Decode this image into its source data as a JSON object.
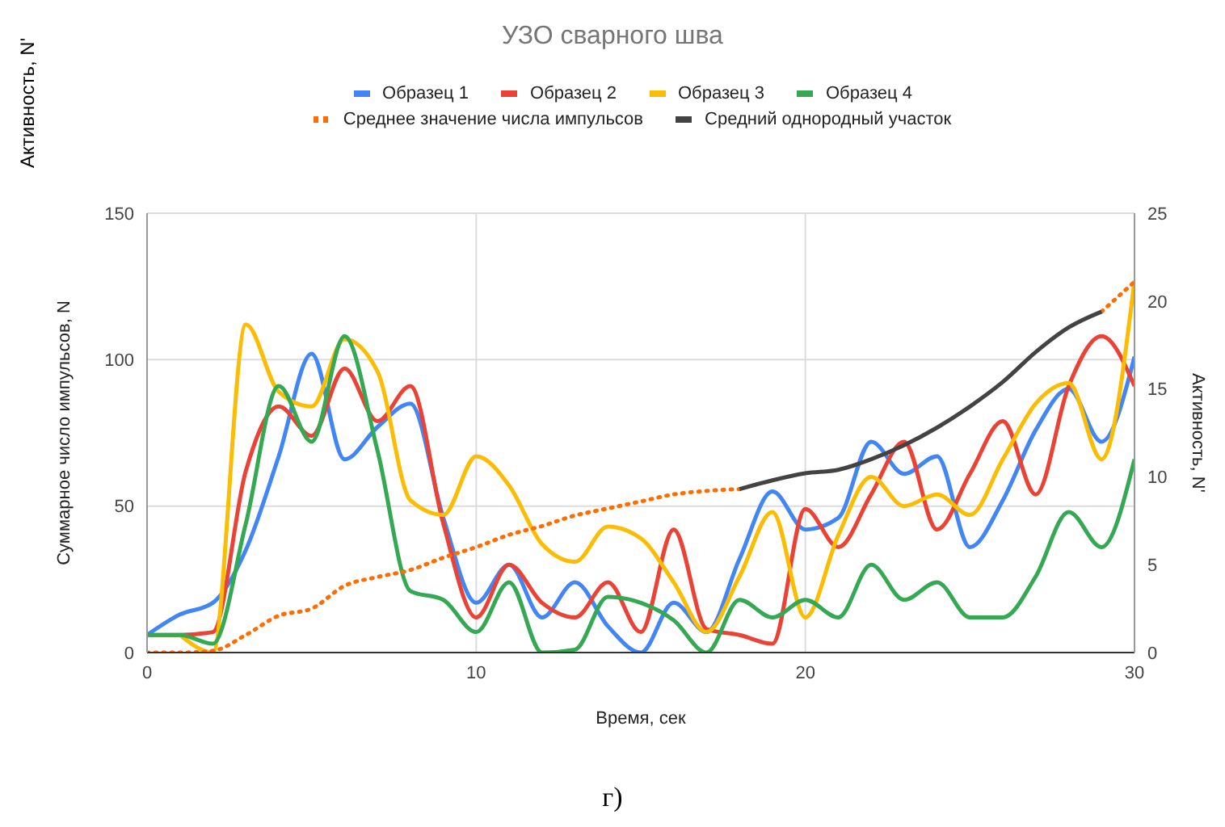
{
  "chart_data": {
    "type": "line",
    "title": "УЗО сварного шва",
    "xlabel": "Время, сек",
    "ylabel": "Суммарное число импульсов, N",
    "y2label": "Активность, N'",
    "annotations": [
      "Активность, N'",
      "г)"
    ],
    "x": [
      0,
      1,
      2,
      3,
      4,
      5,
      6,
      7,
      8,
      9,
      10,
      11,
      12,
      13,
      14,
      15,
      16,
      17,
      18,
      19,
      20,
      21,
      22,
      23,
      24,
      25,
      26,
      27,
      28,
      29,
      30
    ],
    "xlim": [
      0,
      30
    ],
    "xticks": [
      0,
      10,
      20,
      30
    ],
    "ylim": [
      0,
      150
    ],
    "yticks": [
      0,
      50,
      100,
      150
    ],
    "y2lim": [
      0,
      25
    ],
    "y2ticks": [
      0,
      5,
      10,
      15,
      20,
      25
    ],
    "grid": true,
    "legend": "top",
    "marker": "none",
    "series": [
      {
        "name": "Образец 1",
        "color": "#4285f4",
        "values": [
          6,
          13,
          17,
          35,
          67,
          102,
          66,
          77,
          85,
          46,
          17,
          30,
          12,
          24,
          9,
          0,
          17,
          7,
          32,
          55,
          42,
          46,
          72,
          61,
          67,
          36,
          52,
          76,
          90,
          72,
          101
        ]
      },
      {
        "name": "Образец 2",
        "color": "#ea4335",
        "values": [
          6,
          6,
          7,
          62,
          84,
          74,
          97,
          79,
          91,
          44,
          12,
          30,
          17,
          12,
          24,
          7,
          42,
          8,
          6,
          3,
          49,
          36,
          54,
          72,
          42,
          61,
          79,
          54,
          91,
          108,
          91
        ]
      },
      {
        "name": "Образец 3",
        "color": "#fbbc04",
        "values": [
          null,
          6,
          0,
          112,
          89,
          84,
          107,
          96,
          52,
          47,
          67,
          57,
          37,
          31,
          43,
          39,
          24,
          7,
          26,
          48,
          12,
          40,
          60,
          50,
          54,
          47,
          66,
          85,
          92,
          66,
          127
        ]
      },
      {
        "name": "Образец 4",
        "color": "#34a853",
        "values": [
          6,
          6,
          3,
          44,
          91,
          72,
          108,
          69,
          21,
          18,
          7,
          24,
          0,
          1,
          19,
          17,
          11,
          0,
          18,
          12,
          18,
          12,
          30,
          18,
          24,
          12,
          12,
          26,
          48,
          36,
          66
        ]
      },
      {
        "name": "Среднее значение числа импульсов",
        "color": "#ff6d01",
        "axis": "y2",
        "line_style": "dotted",
        "values": [
          0,
          0,
          0.1,
          1.0,
          2.1,
          2.5,
          3.8,
          4.3,
          4.7,
          5.4,
          6.0,
          6.7,
          7.2,
          7.8,
          8.2,
          8.6,
          9.0,
          9.2,
          9.3,
          null,
          null,
          null,
          null,
          null,
          null,
          null,
          null,
          null,
          null,
          19.4,
          21.1
        ]
      },
      {
        "name": "Средний однородный участок",
        "color": "#434343",
        "axis": "y2",
        "values": [
          null,
          null,
          null,
          null,
          null,
          null,
          null,
          null,
          null,
          null,
          null,
          null,
          null,
          null,
          null,
          null,
          null,
          null,
          9.3,
          9.8,
          10.2,
          10.4,
          11.0,
          11.8,
          12.8,
          14.0,
          15.4,
          17.1,
          18.5,
          19.4,
          null
        ]
      }
    ]
  }
}
